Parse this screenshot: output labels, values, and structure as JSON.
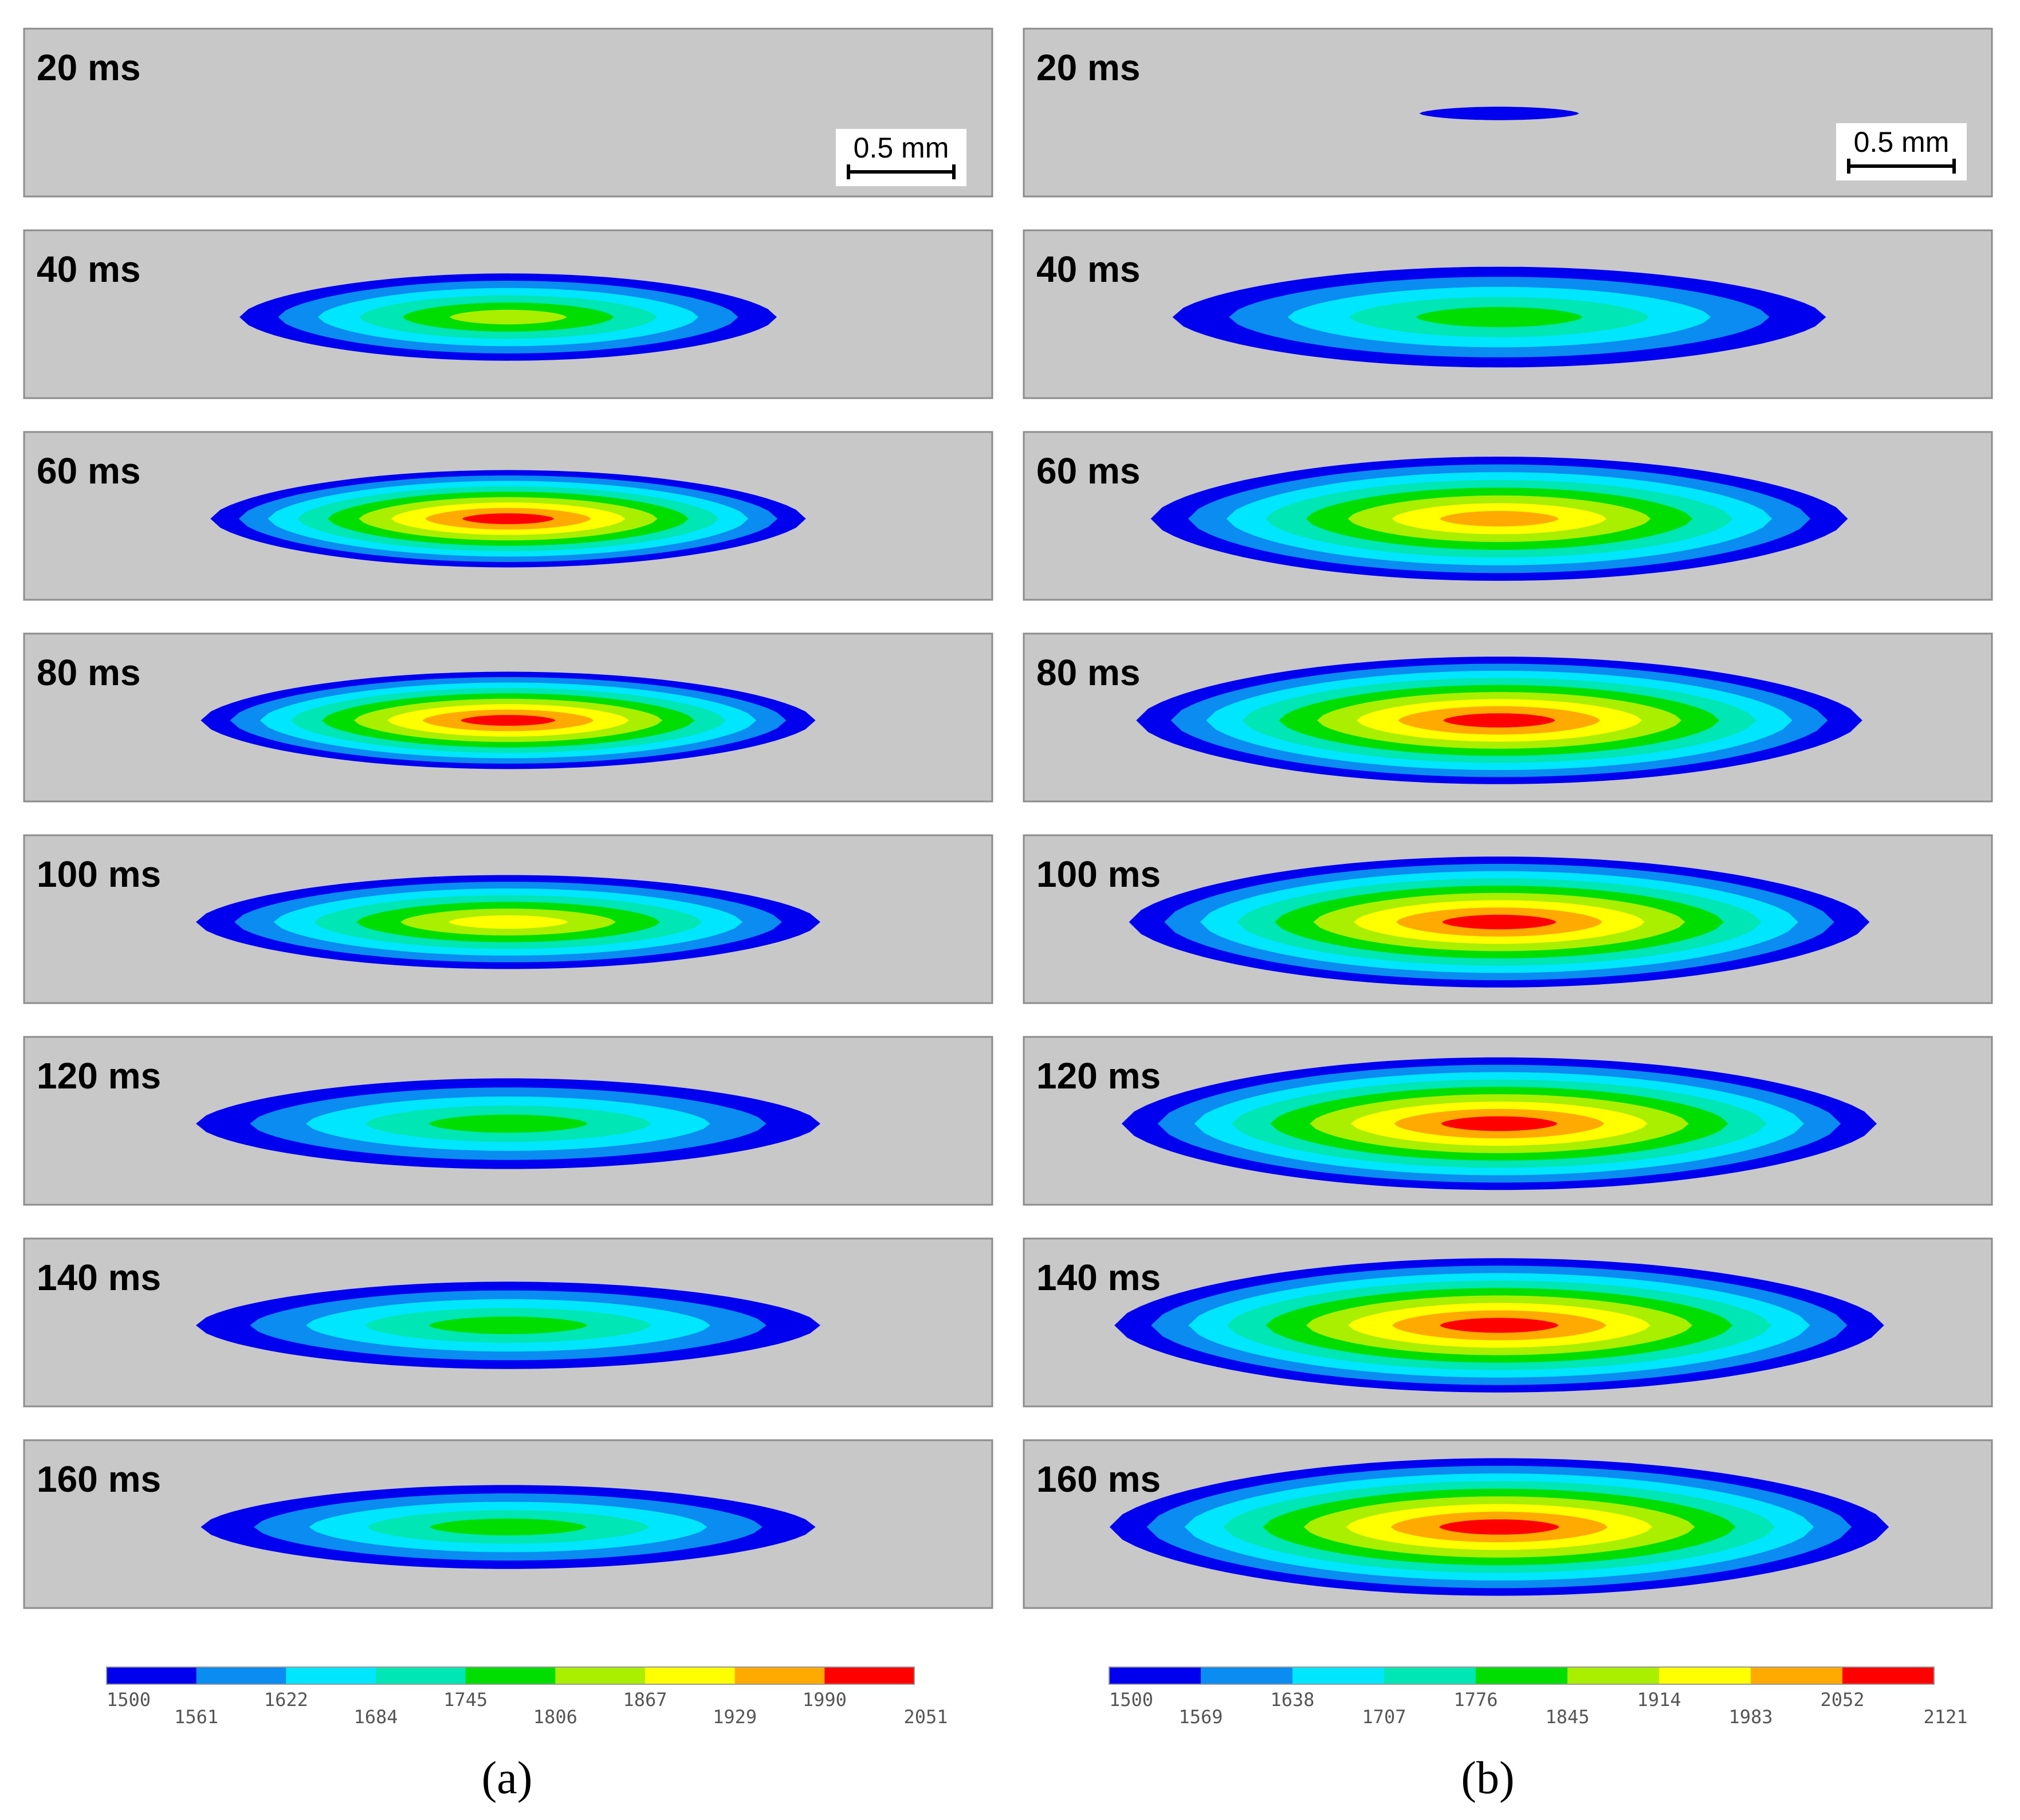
{
  "panels": [
    {
      "caption": "(a)",
      "scale_bar_label": "0.5 mm",
      "frames": [
        {
          "label": "20 ms",
          "pool": null
        },
        {
          "label": "40 ms",
          "pool": {
            "half_length": 0.555,
            "half_width": 0.52,
            "levels": 6
          }
        },
        {
          "label": "60 ms",
          "pool": {
            "half_length": 0.615,
            "half_width": 0.58,
            "levels": 9
          }
        },
        {
          "label": "80 ms",
          "pool": {
            "half_length": 0.635,
            "half_width": 0.58,
            "levels": 9
          }
        },
        {
          "label": "100 ms",
          "pool": {
            "half_length": 0.645,
            "half_width": 0.56,
            "levels": 7
          }
        },
        {
          "label": "120 ms",
          "pool": {
            "half_length": 0.645,
            "half_width": 0.54,
            "levels": 5
          }
        },
        {
          "label": "140 ms",
          "pool": {
            "half_length": 0.645,
            "half_width": 0.52,
            "levels": 5
          }
        },
        {
          "label": "160 ms",
          "pool": {
            "half_length": 0.635,
            "half_width": 0.5,
            "levels": 5
          }
        }
      ],
      "colorbar_ticks": [
        "1500",
        "1561",
        "1622",
        "1684",
        "1745",
        "1806",
        "1867",
        "1929",
        "1990",
        "2051"
      ]
    },
    {
      "caption": "(b)",
      "scale_bar_label": "0.5 mm",
      "frames": [
        {
          "label": "20 ms",
          "pool": {
            "half_length": 0.165,
            "half_width": 0.08,
            "levels": 1
          }
        },
        {
          "label": "40 ms",
          "pool": {
            "half_length": 0.675,
            "half_width": 0.6,
            "levels": 5
          }
        },
        {
          "label": "60 ms",
          "pool": {
            "half_length": 0.72,
            "half_width": 0.74,
            "levels": 8
          }
        },
        {
          "label": "80 ms",
          "pool": {
            "half_length": 0.75,
            "half_width": 0.76,
            "levels": 9
          }
        },
        {
          "label": "100 ms",
          "pool": {
            "half_length": 0.765,
            "half_width": 0.78,
            "levels": 9
          }
        },
        {
          "label": "120 ms",
          "pool": {
            "half_length": 0.78,
            "half_width": 0.79,
            "levels": 9
          }
        },
        {
          "label": "140 ms",
          "pool": {
            "half_length": 0.795,
            "half_width": 0.8,
            "levels": 9
          }
        },
        {
          "label": "160 ms",
          "pool": {
            "half_length": 0.805,
            "half_width": 0.82,
            "levels": 9
          }
        }
      ],
      "colorbar_ticks": [
        "1500",
        "1569",
        "1638",
        "1707",
        "1776",
        "1845",
        "1914",
        "1983",
        "2052",
        "2121"
      ]
    }
  ],
  "colors": [
    "#0000ee",
    "#0a8cf0",
    "#00e6ff",
    "#00e6b4",
    "#00dd00",
    "#aaee00",
    "#ffff00",
    "#ffaa00",
    "#ff0000"
  ],
  "frame_background": "#c8c8c8"
}
